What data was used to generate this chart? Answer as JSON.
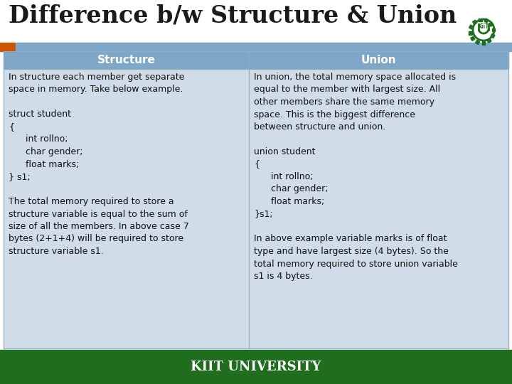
{
  "title": "Difference b/w Structure & Union",
  "title_fontsize": 24,
  "title_color": "#1a1a1a",
  "bg_color": "#ffffff",
  "header_bg": "#7fa8c8",
  "header_text_color": "#ffffff",
  "header_fontsize": 11,
  "cell_bg": "#d0dce8",
  "orange_bar_color": "#cc5500",
  "green_color": "#1e6e1e",
  "footer_text": "KIIT UNIVERSITY",
  "footer_text_color": "#ffffff",
  "footer_fontsize": 13,
  "col_headers": [
    "Structure",
    "Union"
  ],
  "structure_text": "In structure each member get separate\nspace in memory. Take below example.\n\nstruct student\n{\n      int rollno;\n      char gender;\n      float marks;\n} s1;\n\nThe total memory required to store a\nstructure variable is equal to the sum of\nsize of all the members. In above case 7\nbytes (2+1+4) will be required to store\nstructure variable s1.",
  "union_text": "In union, the total memory space allocated is\nequal to the member with largest size. All\nother members share the same memory\nspace. This is the biggest difference\nbetween structure and union.\n\nunion student\n{\n      int rollno;\n      char gender;\n      float marks;\n}s1;\n\nIn above example variable marks is of float\ntype and have largest size (4 bytes). So the\ntotal memory required to store union variable\ns1 is 4 bytes.",
  "cell_fontsize": 9.0
}
